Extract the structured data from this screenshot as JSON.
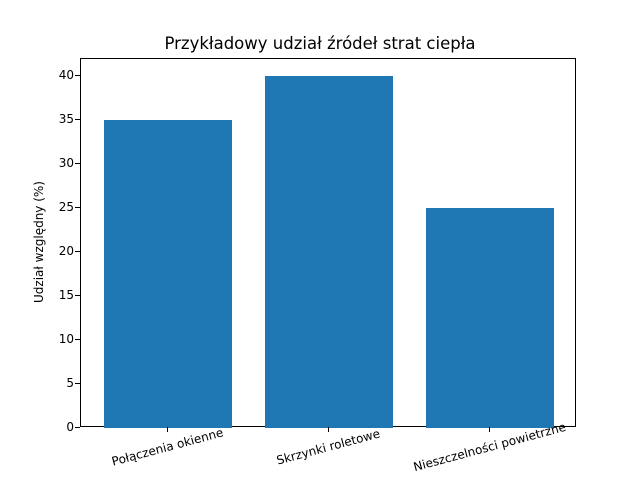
{
  "chart_data": {
    "type": "bar",
    "title": "Przykładowy udział źródeł strat ciepła",
    "xlabel": "",
    "ylabel": "Udział względny (%)",
    "categories": [
      "Połączenia okienne",
      "Skrzynki roletowe",
      "Nieszczelności powietrzne"
    ],
    "values": [
      35,
      40,
      25
    ],
    "ylim": [
      0,
      42
    ],
    "yticks": [
      0,
      5,
      10,
      15,
      20,
      25,
      30,
      35,
      40
    ],
    "grid": false,
    "legend": null,
    "bar_color": "#1f77b4"
  }
}
